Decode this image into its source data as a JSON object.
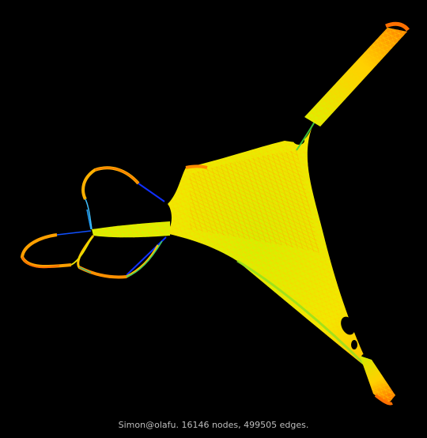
{
  "caption": "Simon@olafu. 16146 nodes, 499505 edges.",
  "colors": {
    "background": "#000000",
    "edge_short": "#1030ff",
    "edge_mid": "#30d050",
    "edge_mesh": "#c8f000",
    "edge_long": "#ffd000",
    "edge_longest": "#ff7000"
  }
}
